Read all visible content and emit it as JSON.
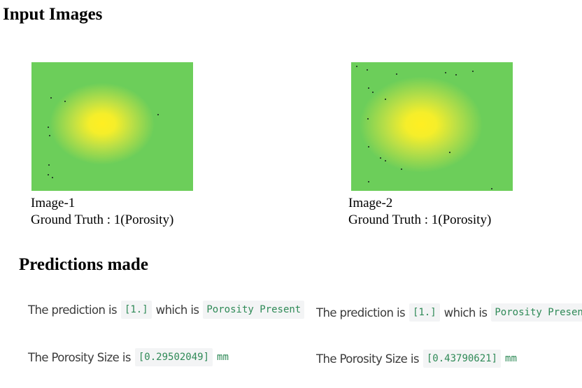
{
  "headings": {
    "input_images": "Input Images",
    "predictions_made": "Predictions made"
  },
  "images": [
    {
      "label": "Image-1",
      "ground_truth": "Ground Truth : 1(Porosity)",
      "colors": {
        "background": "#6cce5a",
        "hotspot": "#ffee22"
      }
    },
    {
      "label": "Image-2",
      "ground_truth": "Ground Truth : 1(Porosity)",
      "colors": {
        "background": "#6cce5a",
        "hotspot": "#ffee22"
      }
    }
  ],
  "predictions": [
    {
      "prediction_prefix": "The prediction is",
      "prediction_value": "[1.]",
      "which_is": "which is",
      "prediction_label": "Porosity Present",
      "size_prefix": "The Porosity Size is",
      "size_value": "[0.29502049]",
      "size_unit": "mm"
    },
    {
      "prediction_prefix": "The prediction is",
      "prediction_value": "[1.]",
      "which_is": "which is",
      "prediction_label": "Porosity Present",
      "size_prefix": "The Porosity Size is",
      "size_value": "[0.43790621]",
      "size_unit": "mm"
    }
  ]
}
